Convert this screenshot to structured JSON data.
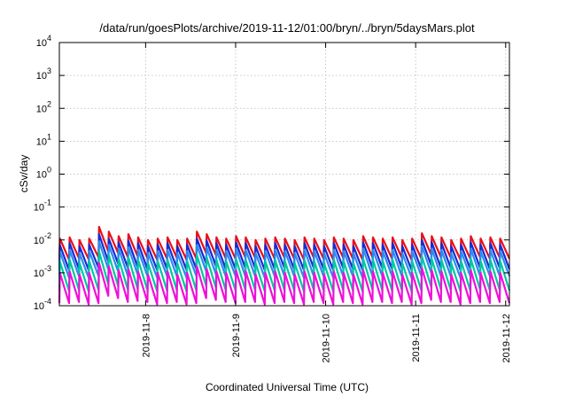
{
  "chart_data": {
    "type": "line",
    "title": "/data/run/goesPlots/archive/2019-11-12/01:00/bryn/../bryn/5daysMars.plot",
    "xlabel": "Coordinated Universal Time (UTC)",
    "ylabel": "cSv/day",
    "y_scale": "log",
    "ylim": [
      0.0001,
      10000
    ],
    "xlim": [
      "2019-11-07 01:00",
      "2019-11-12 01:00"
    ],
    "y_ticks": [
      {
        "value": 0.0001,
        "mantissa": "10",
        "exp": "-4"
      },
      {
        "value": 0.001,
        "mantissa": "10",
        "exp": "-3"
      },
      {
        "value": 0.01,
        "mantissa": "10",
        "exp": "-2"
      },
      {
        "value": 0.1,
        "mantissa": "10",
        "exp": "-1"
      },
      {
        "value": 1,
        "mantissa": "10",
        "exp": "0"
      },
      {
        "value": 10,
        "mantissa": "10",
        "exp": "1"
      },
      {
        "value": 100,
        "mantissa": "10",
        "exp": "2"
      },
      {
        "value": 1000,
        "mantissa": "10",
        "exp": "3"
      },
      {
        "value": 10000,
        "mantissa": "10",
        "exp": "4"
      }
    ],
    "x_ticks": [
      "2019-11-8",
      "2019-11-9",
      "2019-11-10",
      "2019-11-11",
      "2019-11-12"
    ],
    "grid": true,
    "legend": "none",
    "series": [
      {
        "color": "#e8101a",
        "peaks": [
          0.011,
          0.012,
          0.01,
          0.011,
          0.025,
          0.018,
          0.013,
          0.015,
          0.012,
          0.01,
          0.011,
          0.012,
          0.01,
          0.011,
          0.018,
          0.015,
          0.012,
          0.011,
          0.013,
          0.012,
          0.01,
          0.011,
          0.012,
          0.011,
          0.01,
          0.012,
          0.011,
          0.01,
          0.012,
          0.011,
          0.01,
          0.013,
          0.012,
          0.011,
          0.012,
          0.01,
          0.011,
          0.016,
          0.013,
          0.012,
          0.01,
          0.011,
          0.013,
          0.011,
          0.012,
          0.011
        ],
        "floors": [
          0.0025,
          0.0028,
          0.0026,
          0.003,
          0.0045,
          0.004,
          0.003,
          0.0032,
          0.0028,
          0.0025,
          0.0027,
          0.0029,
          0.0025,
          0.0027,
          0.004,
          0.0035,
          0.0028,
          0.0027,
          0.003,
          0.0029,
          0.0025,
          0.0027,
          0.0029,
          0.0027,
          0.0025,
          0.0029,
          0.0027,
          0.0025,
          0.0029,
          0.0027,
          0.0025,
          0.003,
          0.0029,
          0.0027,
          0.0029,
          0.0025,
          0.0027,
          0.0036,
          0.003,
          0.0029,
          0.0025,
          0.0027,
          0.003,
          0.0027,
          0.0029,
          0.0027
        ]
      },
      {
        "color": "#1a2ad0",
        "peaks": [
          0.007,
          0.008,
          0.0065,
          0.0072,
          0.015,
          0.011,
          0.0085,
          0.0095,
          0.008,
          0.0065,
          0.0072,
          0.008,
          0.0065,
          0.0072,
          0.011,
          0.0095,
          0.008,
          0.0072,
          0.0085,
          0.008,
          0.0065,
          0.0072,
          0.008,
          0.0072,
          0.0065,
          0.008,
          0.0072,
          0.0065,
          0.008,
          0.0072,
          0.0065,
          0.0085,
          0.008,
          0.0072,
          0.008,
          0.0065,
          0.0072,
          0.01,
          0.0085,
          0.008,
          0.0065,
          0.0072,
          0.0085,
          0.0072,
          0.008,
          0.0072
        ],
        "floors": [
          0.0012,
          0.0013,
          0.0012,
          0.0014,
          0.0022,
          0.0019,
          0.0014,
          0.0015,
          0.0013,
          0.0012,
          0.0013,
          0.0014,
          0.0012,
          0.0013,
          0.0019,
          0.0016,
          0.0013,
          0.0013,
          0.0014,
          0.0014,
          0.0012,
          0.0013,
          0.0014,
          0.0013,
          0.0012,
          0.0014,
          0.0013,
          0.0012,
          0.0014,
          0.0013,
          0.0012,
          0.0014,
          0.0014,
          0.0013,
          0.0014,
          0.0012,
          0.0013,
          0.0017,
          0.0014,
          0.0014,
          0.0012,
          0.0013,
          0.0014,
          0.0013,
          0.0014,
          0.0013
        ]
      },
      {
        "color": "#2a8cf0",
        "peaks": [
          0.0045,
          0.005,
          0.004,
          0.0046,
          0.009,
          0.007,
          0.0055,
          0.006,
          0.005,
          0.004,
          0.0046,
          0.005,
          0.004,
          0.0046,
          0.007,
          0.006,
          0.005,
          0.0046,
          0.0055,
          0.005,
          0.004,
          0.0046,
          0.005,
          0.0046,
          0.004,
          0.005,
          0.0046,
          0.004,
          0.005,
          0.0046,
          0.004,
          0.0055,
          0.005,
          0.0046,
          0.005,
          0.004,
          0.0046,
          0.0065,
          0.0055,
          0.005,
          0.004,
          0.0046,
          0.0055,
          0.0046,
          0.005,
          0.0046
        ],
        "floors": [
          0.0007,
          0.0008,
          0.0007,
          0.0008,
          0.0013,
          0.0011,
          0.0008,
          0.0009,
          0.0008,
          0.0007,
          0.0008,
          0.0008,
          0.0007,
          0.0008,
          0.0011,
          0.0009,
          0.0008,
          0.0008,
          0.0008,
          0.0008,
          0.0007,
          0.0008,
          0.0008,
          0.0008,
          0.0007,
          0.0008,
          0.0008,
          0.0007,
          0.0008,
          0.0008,
          0.0007,
          0.0008,
          0.0008,
          0.0008,
          0.0008,
          0.0007,
          0.0008,
          0.001,
          0.0008,
          0.0008,
          0.0007,
          0.0008,
          0.0008,
          0.0008,
          0.0008,
          0.0008
        ]
      },
      {
        "color": "#00c8a0",
        "peaks": [
          0.0022,
          0.0025,
          0.002,
          0.0023,
          0.0045,
          0.0035,
          0.0027,
          0.003,
          0.0025,
          0.002,
          0.0023,
          0.0025,
          0.002,
          0.0023,
          0.0035,
          0.003,
          0.0025,
          0.0023,
          0.0027,
          0.0025,
          0.002,
          0.0023,
          0.0025,
          0.0023,
          0.002,
          0.0025,
          0.0023,
          0.002,
          0.0025,
          0.0023,
          0.002,
          0.0027,
          0.0025,
          0.0023,
          0.0025,
          0.002,
          0.0023,
          0.0032,
          0.0027,
          0.0025,
          0.002,
          0.0023,
          0.0027,
          0.0023,
          0.0025,
          0.0023
        ],
        "floors": [
          0.00028,
          0.0003,
          0.00027,
          0.0003,
          0.00045,
          0.0004,
          0.00031,
          0.00033,
          0.0003,
          0.00027,
          0.00029,
          0.0003,
          0.00027,
          0.00029,
          0.0004,
          0.00035,
          0.0003,
          0.00029,
          0.00031,
          0.0003,
          0.00027,
          0.00029,
          0.0003,
          0.00029,
          0.00027,
          0.0003,
          0.00029,
          0.00027,
          0.0003,
          0.00029,
          0.00027,
          0.00031,
          0.0003,
          0.00029,
          0.0003,
          0.00027,
          0.00029,
          0.00037,
          0.00031,
          0.0003,
          0.00027,
          0.00029,
          0.00031,
          0.00029,
          0.0003,
          0.00029
        ]
      },
      {
        "color": "#ee10d8",
        "peaks": [
          0.001,
          0.0011,
          0.0009,
          0.001,
          0.002,
          0.0016,
          0.0012,
          0.0013,
          0.0011,
          0.0009,
          0.001,
          0.0011,
          0.0009,
          0.001,
          0.0016,
          0.0013,
          0.0011,
          0.001,
          0.0012,
          0.0011,
          0.0009,
          0.001,
          0.0011,
          0.001,
          0.0009,
          0.0011,
          0.001,
          0.0009,
          0.0011,
          0.001,
          0.0009,
          0.0012,
          0.0011,
          0.001,
          0.0011,
          0.0009,
          0.001,
          0.0014,
          0.0012,
          0.0011,
          0.0009,
          0.001,
          0.0012,
          0.001,
          0.0011,
          0.001
        ],
        "floors": [
          0.00012,
          0.00013,
          0.00011,
          0.00012,
          0.0002,
          0.00017,
          0.00013,
          0.00014,
          0.00013,
          0.00011,
          0.00012,
          0.00013,
          0.00011,
          0.00012,
          0.00017,
          0.00015,
          0.00013,
          0.00012,
          0.00013,
          0.00013,
          0.00011,
          0.00012,
          0.00013,
          0.00012,
          0.00011,
          0.00013,
          0.00012,
          0.00011,
          0.00013,
          0.00012,
          0.00011,
          0.00013,
          0.00013,
          0.00012,
          0.00013,
          0.00011,
          0.00012,
          0.00015,
          0.00013,
          0.00013,
          0.00011,
          0.00012,
          0.00013,
          0.00012,
          0.00013,
          0.00012
        ]
      }
    ]
  }
}
